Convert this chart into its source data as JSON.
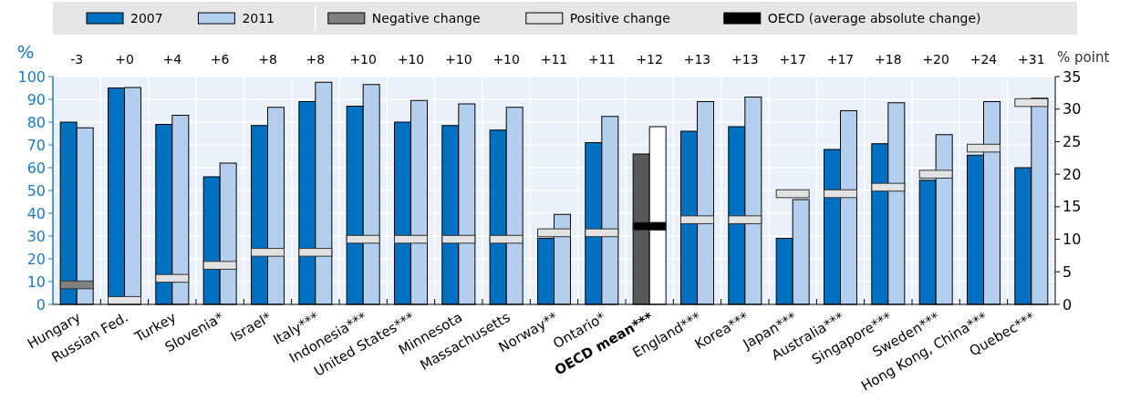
{
  "chart_data": {
    "type": "bar",
    "categories": [
      "Hungary",
      "Russian Fed.",
      "Turkey",
      "Slovenia*",
      "Israel*",
      "Italy***",
      "Indonesia***",
      "United States***",
      "Minnesota",
      "Massachusetts",
      "Norway**",
      "Ontario*",
      "OECD mean***",
      "England***",
      "Korea***",
      "Japan***",
      "Australia***",
      "Singapore***",
      "Sweden***",
      "Hong Kong, China***",
      "Quebec***"
    ],
    "ylabel": "%",
    "y2label": "% point",
    "ylim": [
      0,
      100
    ],
    "yticks": [
      0,
      10,
      20,
      30,
      40,
      50,
      60,
      70,
      80,
      90,
      100
    ],
    "y2lim": [
      0,
      35
    ],
    "y2ticks": [
      0,
      5,
      10,
      15,
      20,
      25,
      30,
      35
    ],
    "grid": true,
    "legend": "top",
    "annotations": [
      "-3",
      "+0",
      "+4",
      "+6",
      "+8",
      "+8",
      "+10",
      "+10",
      "+10",
      "+10",
      "+11",
      "+11",
      "+12",
      "+13",
      "+13",
      "+17",
      "+17",
      "+18",
      "+20",
      "+24",
      "+31"
    ],
    "series": [
      {
        "name": "2007",
        "type": "bar",
        "color": "#0070c0",
        "colors": [
          "#0070c0",
          "#0070c0",
          "#0070c0",
          "#0070c0",
          "#0070c0",
          "#0070c0",
          "#0070c0",
          "#0070c0",
          "#0070c0",
          "#0070c0",
          "#0070c0",
          "#0070c0",
          "#595959",
          "#0070c0",
          "#0070c0",
          "#0070c0",
          "#0070c0",
          "#0070c0",
          "#0070c0",
          "#0070c0",
          "#0070c0"
        ],
        "values": [
          80,
          95,
          79,
          56,
          78.5,
          89,
          87,
          80,
          78.5,
          76.5,
          29,
          71,
          66,
          76,
          78,
          29,
          68,
          70.5,
          54.5,
          65.5,
          60
        ]
      },
      {
        "name": "2011",
        "type": "bar",
        "color": "#b4cfee",
        "colors": [
          "#b4cfee",
          "#b4cfee",
          "#b4cfee",
          "#b4cfee",
          "#b4cfee",
          "#b4cfee",
          "#b4cfee",
          "#b4cfee",
          "#b4cfee",
          "#b4cfee",
          "#b4cfee",
          "#b4cfee",
          "#ffffff",
          "#b4cfee",
          "#b4cfee",
          "#b4cfee",
          "#b4cfee",
          "#b4cfee",
          "#b4cfee",
          "#b4cfee",
          "#b4cfee"
        ],
        "values": [
          77.5,
          95.2,
          83,
          62,
          86.5,
          97.5,
          96.5,
          89.5,
          88,
          86.5,
          39.5,
          82.5,
          78,
          89,
          91,
          46,
          85,
          88.5,
          74.5,
          89,
          90.5
        ]
      },
      {
        "name": "Negative change",
        "type": "bar",
        "axis": "y2",
        "color": "#808080",
        "base": [
          2.4,
          null,
          null,
          null,
          null,
          null,
          null,
          null,
          null,
          null,
          null,
          null,
          null,
          null,
          null,
          null,
          null,
          null,
          null,
          null,
          null
        ],
        "values": [
          1.2,
          null,
          null,
          null,
          null,
          null,
          null,
          null,
          null,
          null,
          null,
          null,
          null,
          null,
          null,
          null,
          null,
          null,
          null,
          null,
          null
        ]
      },
      {
        "name": "Positive change",
        "type": "bar",
        "axis": "y2",
        "color": "#e2e2e2",
        "base": [
          null,
          0,
          3.4,
          5.4,
          7.4,
          7.4,
          9.4,
          9.4,
          9.4,
          9.4,
          10.4,
          10.4,
          null,
          12.4,
          12.4,
          16.4,
          16.4,
          17.4,
          19.4,
          23.4,
          30.4
        ],
        "values": [
          null,
          1.2,
          1.2,
          1.2,
          1.2,
          1.2,
          1.2,
          1.2,
          1.2,
          1.2,
          1.2,
          1.2,
          null,
          1.2,
          1.2,
          1.2,
          1.2,
          1.2,
          1.2,
          1.2,
          1.2
        ]
      },
      {
        "name": "OECD (average absolute change)",
        "type": "bar",
        "axis": "y2",
        "color": "#000000",
        "base": [
          null,
          null,
          null,
          null,
          null,
          null,
          null,
          null,
          null,
          null,
          null,
          null,
          11.4,
          null,
          null,
          null,
          null,
          null,
          null,
          null,
          null
        ],
        "values": [
          null,
          null,
          null,
          null,
          null,
          null,
          null,
          null,
          null,
          null,
          null,
          null,
          1.2,
          null,
          null,
          null,
          null,
          null,
          null,
          null,
          null
        ]
      }
    ]
  }
}
